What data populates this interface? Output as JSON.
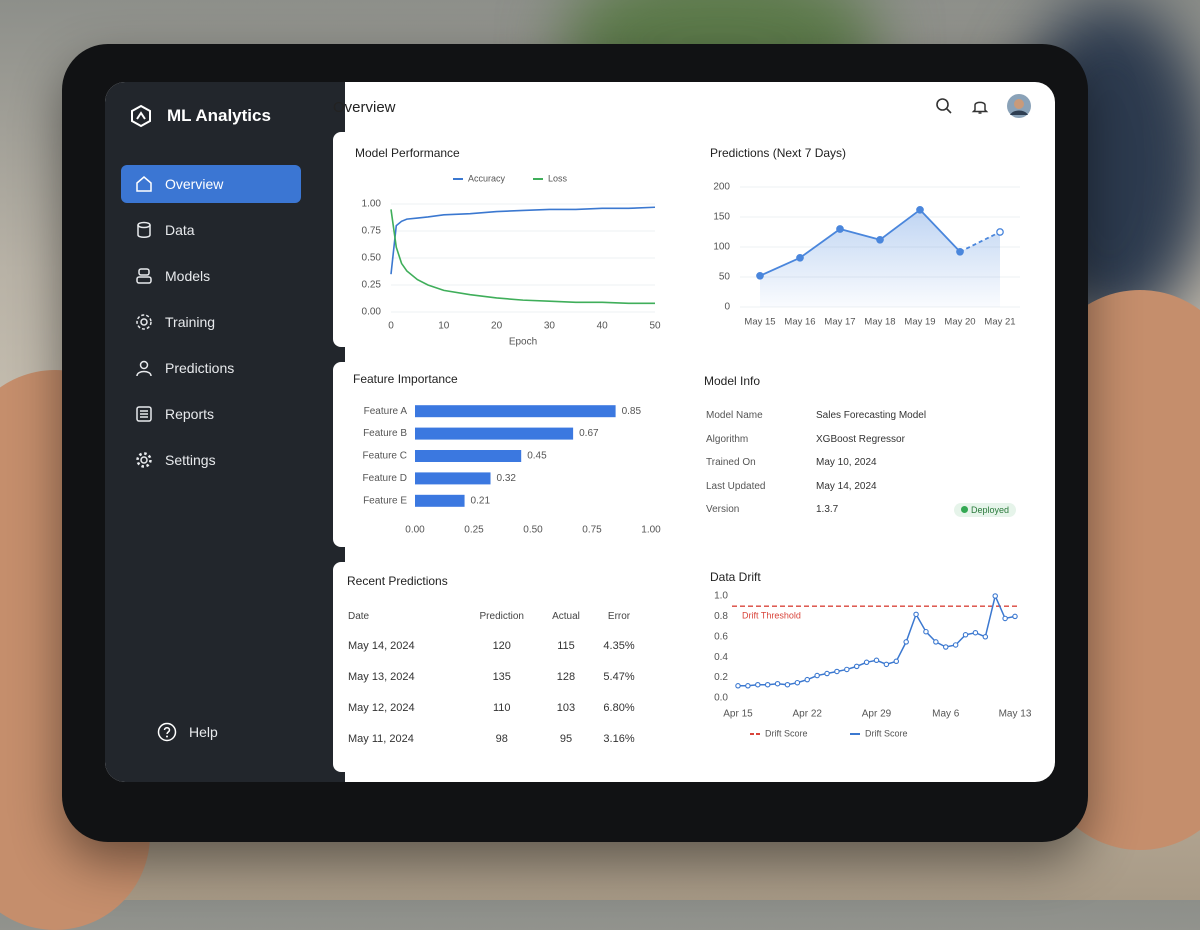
{
  "sidebar": {
    "brand": "ML Analytics",
    "nav": [
      "Overview",
      "Data",
      "Models",
      "Training",
      "Predictions",
      "Reports",
      "Settings"
    ],
    "help": "Help"
  },
  "header": {
    "title": "Overview"
  },
  "model_performance": {
    "chart_data": {
      "type": "line",
      "title": "Model Performance",
      "x_label": "Epoch",
      "x": [
        0,
        1,
        2,
        3,
        5,
        7,
        10,
        15,
        20,
        25,
        30,
        35,
        40,
        45,
        50
      ],
      "series": [
        {
          "name": "Accuracy",
          "color": "#3b78d0",
          "values": [
            0.35,
            0.8,
            0.84,
            0.86,
            0.87,
            0.88,
            0.9,
            0.91,
            0.93,
            0.94,
            0.95,
            0.95,
            0.96,
            0.96,
            0.97
          ]
        },
        {
          "name": "Loss",
          "color": "#3fae5a",
          "values": [
            0.95,
            0.6,
            0.45,
            0.38,
            0.3,
            0.25,
            0.2,
            0.16,
            0.13,
            0.11,
            0.1,
            0.09,
            0.09,
            0.08,
            0.08
          ]
        }
      ],
      "xlim": [
        0,
        50
      ],
      "xticks": [
        0,
        10,
        20,
        30,
        40,
        50
      ],
      "ylim": [
        0,
        1
      ],
      "yticks": [
        {
          "value": 0,
          "label": "0.00"
        },
        {
          "value": 0.25,
          "label": "0.25"
        },
        {
          "value": 0.5,
          "label": "0.50"
        },
        {
          "value": 0.75,
          "label": "0.75"
        },
        {
          "value": 1,
          "label": "1.00"
        }
      ],
      "grid": true
    }
  },
  "predictions": {
    "chart_data": {
      "type": "area",
      "title": "Predictions (Next 7 Days)",
      "categories": [
        "May 15",
        "May 16",
        "May 17",
        "May 18",
        "May 19",
        "May 20",
        "May 21"
      ],
      "values": [
        52,
        82,
        130,
        112,
        162,
        92,
        125
      ],
      "color": "#4a86dc",
      "dashed_from": 5,
      "ylim": [
        0,
        200
      ],
      "yticks": [
        0,
        50,
        100,
        150,
        200
      ],
      "grid": true
    }
  },
  "feature_importance": {
    "chart_data": {
      "type": "hbar",
      "title": "Feature Importance",
      "categories": [
        "Feature A",
        "Feature B",
        "Feature C",
        "Feature D",
        "Feature E"
      ],
      "values": [
        0.85,
        0.67,
        0.45,
        0.32,
        0.21
      ],
      "color": "#3b78e0",
      "xlim": [
        0,
        1
      ],
      "xticks": [
        {
          "value": 0,
          "label": "0.00"
        },
        {
          "value": 0.25,
          "label": "0.25"
        },
        {
          "value": 0.5,
          "label": "0.50"
        },
        {
          "value": 0.75,
          "label": "0.75"
        },
        {
          "value": 1,
          "label": "1.00"
        }
      ]
    }
  },
  "model_info": {
    "title": "Model Info",
    "rows": [
      [
        "Model Name",
        "Sales Forecasting Model"
      ],
      [
        "Algorithm",
        "XGBoost Regressor"
      ],
      [
        "Trained On",
        "May 10, 2024"
      ],
      [
        "Last Updated",
        "May 14, 2024"
      ],
      [
        "Version",
        "1.3.7"
      ]
    ],
    "status": "Deployed"
  },
  "recent_predictions": {
    "title": "Recent Predictions",
    "columns": [
      "Date",
      "Prediction",
      "Actual",
      "Error"
    ],
    "rows": [
      [
        "May 14, 2024",
        120,
        115,
        "4.35%"
      ],
      [
        "May 13, 2024",
        135,
        128,
        "5.47%"
      ],
      [
        "May 12, 2024",
        110,
        103,
        "6.80%"
      ],
      [
        "May 11, 2024",
        98,
        95,
        "3.16%"
      ]
    ]
  },
  "data_drift": {
    "chart_data": {
      "type": "line",
      "title": "Data Drift",
      "categories": [
        "Apr 15",
        null,
        null,
        null,
        null,
        null,
        null,
        "Apr 22",
        null,
        null,
        null,
        null,
        null,
        null,
        "Apr 29",
        null,
        null,
        null,
        null,
        null,
        null,
        "May 6",
        null,
        null,
        null,
        null,
        null,
        null,
        "May 13"
      ],
      "series": [
        {
          "name": "Drift Score",
          "color": "#3b78d0",
          "values": [
            0.12,
            0.12,
            0.13,
            0.13,
            0.14,
            0.13,
            0.15,
            0.18,
            0.22,
            0.24,
            0.26,
            0.28,
            0.31,
            0.35,
            0.37,
            0.33,
            0.36,
            0.55,
            0.82,
            0.65,
            0.55,
            0.5,
            0.52,
            0.62,
            0.64,
            0.6,
            1.0,
            0.78,
            0.8
          ]
        }
      ],
      "threshold": {
        "name": "Drift Score",
        "label": "Drift Threshold",
        "value": 0.9,
        "color": "#d9453b"
      },
      "ylim": [
        0,
        1
      ],
      "yticks": [
        {
          "value": 0,
          "label": "0.0"
        },
        {
          "value": 0.2,
          "label": "0.2"
        },
        {
          "value": 0.4,
          "label": "0.4"
        },
        {
          "value": 0.6,
          "label": "0.6"
        },
        {
          "value": 0.8,
          "label": "0.8"
        },
        {
          "value": 1,
          "label": "1.0"
        }
      ]
    }
  }
}
